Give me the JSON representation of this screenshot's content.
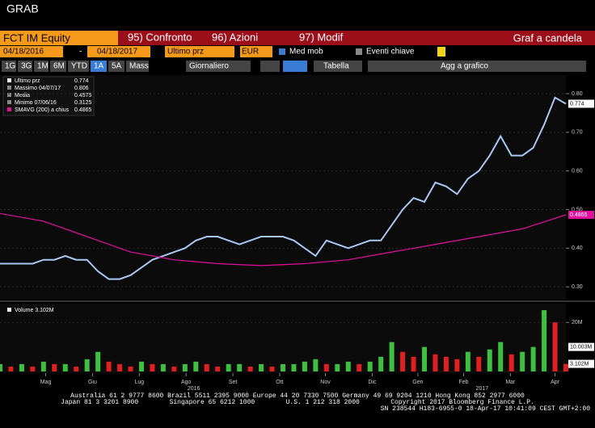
{
  "header": {
    "title": "GRAB",
    "ticker": "FCT IM Equity",
    "menu": [
      "95) Confronto",
      "96) Azioni",
      "97) Modif"
    ],
    "view": "Graf a candela"
  },
  "toolbar": {
    "start": "04/18/2016",
    "sep": "-",
    "end": "04/18/2017",
    "field": "Ultimo prz",
    "currency": "EUR",
    "moving_avg": "Med mob",
    "events": "Eventi chiave",
    "periods": [
      "1G",
      "3G",
      "1M",
      "6M",
      "YTD",
      "1A",
      "5A",
      "Mass"
    ],
    "frequency": "Giornaliero",
    "table": "Tabella",
    "add": "Agg a grafico"
  },
  "legend": [
    {
      "label": "Massimo 04/07/17",
      "value": "0.806"
    },
    {
      "label": "Media",
      "value": "0.4575"
    },
    {
      "label": "Minimo 07/06/16",
      "value": "0.3125"
    }
  ],
  "chart_data": [
    {
      "type": "line",
      "xlim": [
        0,
        52
      ],
      "ylim": [
        0.269,
        0.844
      ],
      "yticks": [
        {
          "value": 0.3,
          "label": "0.30"
        },
        {
          "value": 0.4,
          "label": "0.40"
        },
        {
          "value": 0.5,
          "label": "0.50"
        },
        {
          "value": 0.6,
          "label": "0.60"
        },
        {
          "value": 0.7,
          "label": "0.70"
        },
        {
          "value": 0.8,
          "label": "0.80"
        }
      ],
      "series": [
        {
          "name": "Ultimo prz",
          "color": "#a9c8f5",
          "legend_value": "0.774",
          "x": [
            0,
            1,
            2,
            3,
            4,
            5,
            6,
            7,
            8,
            9,
            10,
            11,
            12,
            13,
            14,
            15,
            16,
            17,
            18,
            19,
            20,
            21,
            22,
            23,
            24,
            25,
            26,
            27,
            28,
            29,
            30,
            31,
            32,
            33,
            34,
            35,
            36,
            37,
            38,
            39,
            40,
            41,
            42,
            43,
            44,
            45,
            46,
            47,
            48,
            49,
            50,
            51,
            52
          ],
          "values": [
            0.36,
            0.36,
            0.36,
            0.36,
            0.37,
            0.37,
            0.38,
            0.37,
            0.37,
            0.34,
            0.32,
            0.32,
            0.33,
            0.35,
            0.37,
            0.38,
            0.39,
            0.4,
            0.42,
            0.43,
            0.43,
            0.42,
            0.41,
            0.42,
            0.43,
            0.43,
            0.43,
            0.42,
            0.4,
            0.38,
            0.42,
            0.41,
            0.4,
            0.41,
            0.42,
            0.42,
            0.46,
            0.5,
            0.53,
            0.52,
            0.57,
            0.56,
            0.54,
            0.58,
            0.6,
            0.64,
            0.69,
            0.64,
            0.64,
            0.66,
            0.72,
            0.79,
            0.774
          ]
        },
        {
          "name": "SMAVG (200) a chius",
          "color": "#e0119d",
          "legend_value": "0.4865",
          "x": [
            0,
            4,
            8,
            12,
            16,
            20,
            24,
            28,
            32,
            36,
            40,
            44,
            48,
            52
          ],
          "values": [
            0.49,
            0.47,
            0.43,
            0.39,
            0.37,
            0.36,
            0.355,
            0.36,
            0.37,
            0.39,
            0.41,
            0.43,
            0.45,
            0.4865
          ]
        }
      ],
      "tags": [
        {
          "value": 0.774,
          "label": "0.774",
          "color": "#fff"
        },
        {
          "value": 0.4865,
          "label": "0.4865",
          "color": "#e0119d"
        }
      ]
    },
    {
      "type": "bar",
      "title": "Volume 3.102M",
      "xlim": [
        0,
        52
      ],
      "ylim": [
        0,
        27
      ],
      "color": "#3fbf3f",
      "down_color": "#e02020",
      "yticks": [
        {
          "value": 20,
          "label": "20M"
        }
      ],
      "x": [
        0,
        1,
        2,
        3,
        4,
        5,
        6,
        7,
        8,
        9,
        10,
        11,
        12,
        13,
        14,
        15,
        16,
        17,
        18,
        19,
        20,
        21,
        22,
        23,
        24,
        25,
        26,
        27,
        28,
        29,
        30,
        31,
        32,
        33,
        34,
        35,
        36,
        37,
        38,
        39,
        40,
        41,
        42,
        43,
        44,
        45,
        46,
        47,
        48,
        49,
        50,
        51,
        52
      ],
      "values": [
        3,
        2,
        3,
        2,
        4,
        3,
        3,
        2,
        5,
        8,
        4,
        3,
        2,
        4,
        3,
        3,
        2,
        3,
        4,
        3,
        2,
        3,
        3,
        2,
        3,
        2,
        3,
        3,
        4,
        5,
        3,
        3,
        4,
        3,
        4,
        6,
        12,
        8,
        6,
        10,
        7,
        6,
        5,
        8,
        6,
        9,
        12,
        7,
        8,
        10,
        25,
        20,
        3.102
      ],
      "tags": [
        {
          "value": 10.003,
          "label": "10.003M",
          "color": "#fff"
        },
        {
          "value": 3.102,
          "label": "3.102M",
          "color": "#fff"
        }
      ],
      "xticks": [
        {
          "value": 4.2,
          "label": "Mag"
        },
        {
          "value": 8.5,
          "label": "Giu"
        },
        {
          "value": 12.8,
          "label": "Lug"
        },
        {
          "value": 17.1,
          "label": "Ago"
        },
        {
          "value": 21.4,
          "label": "Set"
        },
        {
          "value": 25.7,
          "label": "Ott"
        },
        {
          "value": 29.9,
          "label": "Nov"
        },
        {
          "value": 34.2,
          "label": "Dic"
        },
        {
          "value": 38.4,
          "label": "Gen"
        },
        {
          "value": 42.6,
          "label": "Feb"
        },
        {
          "value": 46.9,
          "label": "Mar"
        },
        {
          "value": 51,
          "label": "Apr"
        }
      ],
      "years": [
        {
          "value": 17.8,
          "label": "2016"
        },
        {
          "value": 44.3,
          "label": "2017"
        }
      ]
    }
  ],
  "footer": [
    "Australia 61 2 9777 8600 Brazil 5511 2395 9000 Europe 44 20 7330 7500 Germany 49 69 9204 1210 Hong Kong 852 2977 6000",
    "Japan 81 3 3201 8900        Singapore 65 6212 1000        U.S. 1 212 318 2000        Copyright 2017 Bloomberg Finance L.P.",
    "SN 238544 H183-6955-0 18-Apr-17 10:41:09 CEST GMT+2:00"
  ]
}
